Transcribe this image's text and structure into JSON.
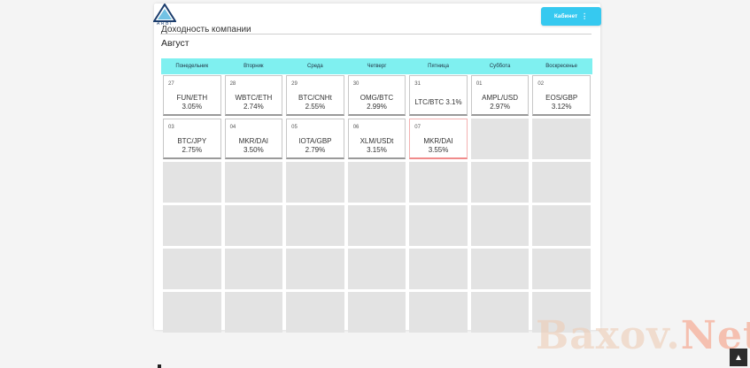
{
  "logo": {
    "text": "ARBI",
    "icon": "triangle-logo-icon"
  },
  "header": {
    "cabinet_label": "Кабинет",
    "cabinet_icon": "vertical-dots-icon"
  },
  "page": {
    "title": "Доходность компании",
    "month": "Август"
  },
  "calendar": {
    "weekdays": [
      "Понедельник",
      "Вторник",
      "Среда",
      "Четверг",
      "Пятница",
      "Суббота",
      "Воскресенье"
    ],
    "days": [
      {
        "day": "27",
        "pair": "FUN/ETH",
        "pct": "3.05%"
      },
      {
        "day": "28",
        "pair": "WBTC/ETH",
        "pct": "2.74%"
      },
      {
        "day": "29",
        "pair": "BTC/CNHt",
        "pct": "2.55%"
      },
      {
        "day": "30",
        "pair": "OMG/BTC",
        "pct": "2.99%"
      },
      {
        "day": "31",
        "pair": "LTC/BTC 3.1%",
        "pct": ""
      },
      {
        "day": "01",
        "pair": "AMPL/USD",
        "pct": "2.97%"
      },
      {
        "day": "02",
        "pair": "EOS/GBP",
        "pct": "3.12%"
      },
      {
        "day": "03",
        "pair": "BTC/JPY",
        "pct": "2.75%"
      },
      {
        "day": "04",
        "pair": "MKR/DAI",
        "pct": "3.50%"
      },
      {
        "day": "05",
        "pair": "IOTA/GBP",
        "pct": "2.79%"
      },
      {
        "day": "06",
        "pair": "XLM/USDt",
        "pct": "3.15%"
      },
      {
        "day": "07",
        "pair": "MKR/DAI",
        "pct": "3.55%",
        "today": true
      }
    ],
    "empty_cells": 30
  },
  "watermark": {
    "text_a": "Baxov.",
    "text_b": "Net"
  },
  "scroll_top_icon": "arrow-up-icon",
  "colors": {
    "accent": "#36c9f0",
    "header_bg": "#7ff0f0",
    "today_border": "#f08b8b"
  }
}
